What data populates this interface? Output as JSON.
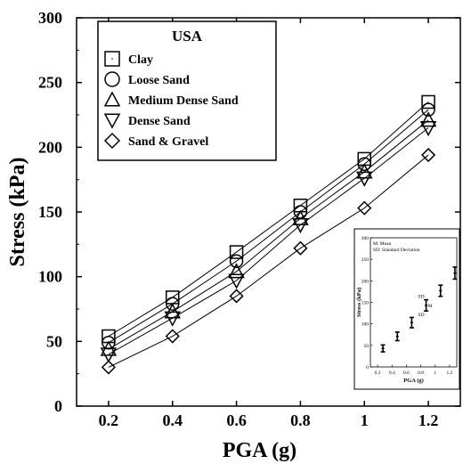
{
  "chart_data": [
    {
      "type": "line",
      "title": "",
      "xlabel": "PGA (g)",
      "ylabel": "Stress (kPa)",
      "xlim": [
        0.1,
        1.3
      ],
      "ylim": [
        0,
        300
      ],
      "xticks": [
        "0.2",
        "0.4",
        "0.6",
        "0.8",
        "1",
        "1.2"
      ],
      "yticks": [
        "0",
        "50",
        "100",
        "150",
        "200",
        "250",
        "300"
      ],
      "x": [
        0.2,
        0.4,
        0.6,
        0.8,
        1.0,
        1.2
      ],
      "legend": {
        "title": "USA",
        "placement": "top-left"
      },
      "series": [
        {
          "name": "Clay",
          "marker": "square",
          "values": [
            54,
            84,
            119,
            155,
            191,
            235
          ]
        },
        {
          "name": "Loose Sand",
          "marker": "circle",
          "values": [
            49,
            79,
            112,
            150,
            187,
            229
          ]
        },
        {
          "name": "Medium Dense Sand",
          "marker": "triangle-up",
          "values": [
            44,
            73,
            104,
            145,
            181,
            221
          ]
        },
        {
          "name": "Dense Sand",
          "marker": "triangle-down",
          "values": [
            40,
            68,
            97,
            140,
            176,
            215
          ]
        },
        {
          "name": "Sand & Gravel",
          "marker": "diamond",
          "values": [
            30,
            54,
            85,
            122,
            153,
            194
          ]
        }
      ]
    },
    {
      "type": "scatter",
      "title": "",
      "xlabel": "PGA (g)",
      "ylabel": "Stress (kPa)",
      "xlim": [
        0.1,
        1.3
      ],
      "ylim": [
        0,
        300
      ],
      "xticks": [
        "0.2",
        "0.4",
        "0.6",
        "0.8",
        "1",
        "1.2"
      ],
      "yticks": [
        "0",
        "50",
        "100",
        "150",
        "200",
        "250",
        "300"
      ],
      "legend_lines": [
        "M: Mean",
        "SD: Standard Deviation"
      ],
      "annotations": [
        "SD",
        "M",
        "SD"
      ],
      "x": [
        0.2,
        0.4,
        0.6,
        0.8,
        1.0,
        1.2
      ],
      "mean": [
        43,
        71,
        103,
        143,
        177,
        218
      ],
      "sd": [
        8,
        10,
        12,
        13,
        13,
        14
      ]
    }
  ]
}
